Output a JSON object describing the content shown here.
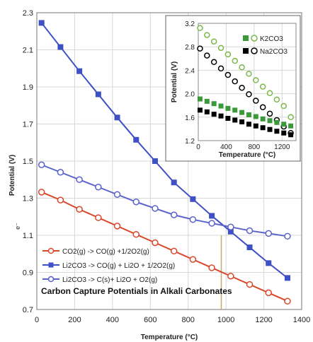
{
  "chart_data": [
    {
      "type": "line",
      "title": "Carbon Capture Potentials in Alkali Carbonates",
      "xlabel": "Temperature (°C)",
      "ylabel": "Potential (V)",
      "ylabel_extra": "e⁻",
      "xlim": [
        0,
        1400
      ],
      "ylim": [
        0.7,
        2.3
      ],
      "xticks": [
        "0",
        "200",
        "400",
        "600",
        "800",
        "1000",
        "1200",
        "1400"
      ],
      "yticks": [
        "0.7",
        "0.9",
        "1.1",
        "1.3",
        "1.5",
        "1.7",
        "1.9",
        "2.1",
        "2.3"
      ],
      "x": [
        25,
        125,
        225,
        325,
        425,
        525,
        625,
        725,
        825,
        925,
        1025,
        1125,
        1225,
        1325
      ],
      "series": [
        {
          "name": "CO2(g) -> CO(g) +1/2O2(g)",
          "color": "#d9472b",
          "marker": "open-circle",
          "values": [
            1.333,
            1.29,
            1.24,
            1.195,
            1.15,
            1.105,
            1.06,
            1.015,
            0.97,
            0.925,
            0.88,
            0.835,
            0.79,
            0.745
          ]
        },
        {
          "name": "Li2CO3 -> CO(g) + Li2O + 1/2O2(g)",
          "color": "#3f4fc4",
          "marker": "filled-square",
          "values": [
            2.245,
            2.115,
            1.985,
            1.86,
            1.735,
            1.615,
            1.5,
            1.385,
            1.295,
            1.205,
            1.12,
            1.035,
            0.95,
            0.87
          ]
        },
        {
          "name": "Li2CO3 -> C(s)+ Li2O + O2(g)",
          "color": "#5a63c9",
          "marker": "open-circle",
          "values": [
            1.48,
            1.44,
            1.4,
            1.36,
            1.32,
            1.28,
            1.245,
            1.21,
            1.185,
            1.165,
            1.145,
            1.125,
            1.11,
            1.095
          ]
        }
      ],
      "annotations": [
        {
          "type": "vertical-line",
          "x": 975,
          "color": "#c8a968"
        }
      ]
    },
    {
      "type": "scatter",
      "xlabel": "Temperature (°C)",
      "ylabel": "Potential (V)",
      "xlim": [
        0,
        1400
      ],
      "ylim": [
        1.2,
        3.2
      ],
      "xticks": [
        "0",
        "400",
        "800",
        "1200"
      ],
      "yticks": [
        "1.2",
        "1.6",
        "2.0",
        "2.4",
        "2.8",
        "3.2"
      ],
      "legend": [
        {
          "label": "K2CO3",
          "filled_color": "#3a9a3a",
          "open_color": "#7ab84a"
        },
        {
          "label": "Na2CO3",
          "filled_color": "#000000",
          "open_color": "#000000"
        }
      ],
      "x": [
        25,
        125,
        225,
        325,
        425,
        525,
        625,
        725,
        825,
        925,
        1025,
        1125,
        1225,
        1325
      ],
      "series": [
        {
          "name": "K2CO3 open",
          "color": "#7ab84a",
          "marker": "open-circle",
          "values": [
            3.12,
            3.0,
            2.89,
            2.78,
            2.67,
            2.56,
            2.45,
            2.34,
            2.23,
            2.12,
            2.01,
            1.9,
            1.79,
            1.6
          ]
        },
        {
          "name": "Na2CO3 open",
          "color": "#000000",
          "marker": "open-circle",
          "values": [
            2.77,
            2.65,
            2.54,
            2.43,
            2.32,
            2.21,
            2.1,
            1.99,
            1.88,
            1.77,
            1.66,
            1.55,
            1.44,
            1.33
          ]
        },
        {
          "name": "K2CO3 filled",
          "color": "#3a9a3a",
          "marker": "filled-square",
          "values": [
            1.91,
            1.87,
            1.83,
            1.79,
            1.75,
            1.72,
            1.68,
            1.64,
            1.61,
            1.57,
            1.54,
            1.51,
            1.48,
            1.45
          ]
        },
        {
          "name": "Na2CO3 filled",
          "color": "#000000",
          "marker": "filled-square",
          "values": [
            1.72,
            1.69,
            1.65,
            1.62,
            1.58,
            1.55,
            1.52,
            1.48,
            1.45,
            1.42,
            1.39,
            1.36,
            1.33,
            1.3
          ]
        }
      ]
    }
  ]
}
